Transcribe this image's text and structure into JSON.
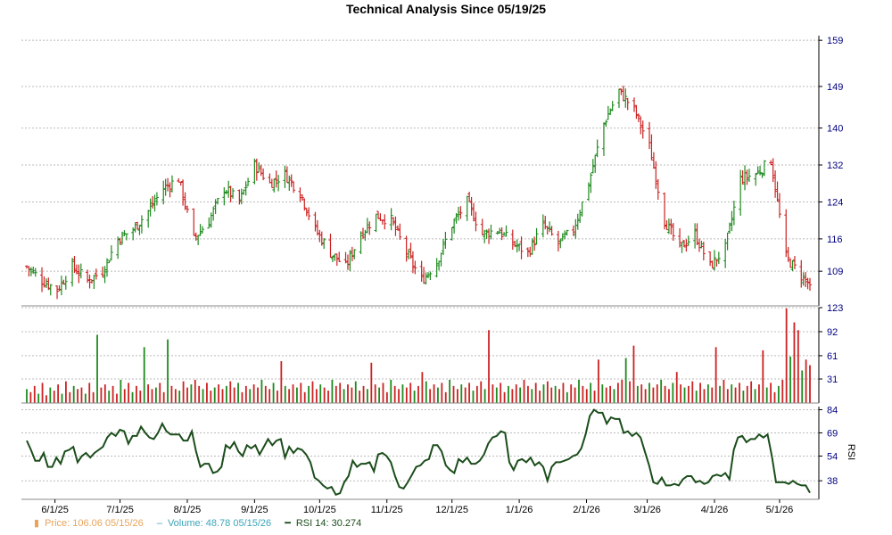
{
  "chart_data": {
    "title": "Technical Analysis Since 05/19/25",
    "x_tick_labels": [
      "6/1/25",
      "7/1/25",
      "8/1/25",
      "9/1/25",
      "10/1/25",
      "11/1/25",
      "12/1/25",
      "1/1/26",
      "2/1/26",
      "3/1/26",
      "4/1/26",
      "5/1/26"
    ],
    "panels": [
      {
        "name": "price",
        "type": "ohlc",
        "y_ticks": [
          109,
          116,
          124,
          132,
          140,
          149,
          159
        ],
        "ylim": [
          101.5,
          160
        ],
        "anchors": [
          {
            "date": "2025-05-19",
            "close": 110
          },
          {
            "date": "2025-05-26",
            "close": 107
          },
          {
            "date": "2025-06-02",
            "close": 105
          },
          {
            "date": "2025-06-09",
            "close": 110
          },
          {
            "date": "2025-06-16",
            "close": 107
          },
          {
            "date": "2025-06-23",
            "close": 109
          },
          {
            "date": "2025-06-30",
            "close": 116
          },
          {
            "date": "2025-07-07",
            "close": 118
          },
          {
            "date": "2025-07-14",
            "close": 122
          },
          {
            "date": "2025-07-21",
            "close": 127
          },
          {
            "date": "2025-07-28",
            "close": 129
          },
          {
            "date": "2025-08-04",
            "close": 116
          },
          {
            "date": "2025-08-11",
            "close": 120
          },
          {
            "date": "2025-08-18",
            "close": 127
          },
          {
            "date": "2025-08-25",
            "close": 124
          },
          {
            "date": "2025-09-01",
            "close": 132
          },
          {
            "date": "2025-09-08",
            "close": 128
          },
          {
            "date": "2025-09-15",
            "close": 130
          },
          {
            "date": "2025-09-22",
            "close": 126
          },
          {
            "date": "2025-09-29",
            "close": 118
          },
          {
            "date": "2025-10-06",
            "close": 113
          },
          {
            "date": "2025-10-13",
            "close": 110
          },
          {
            "date": "2025-10-20",
            "close": 117
          },
          {
            "date": "2025-10-27",
            "close": 121
          },
          {
            "date": "2025-11-03",
            "close": 120
          },
          {
            "date": "2025-11-10",
            "close": 113
          },
          {
            "date": "2025-11-17",
            "close": 107
          },
          {
            "date": "2025-11-24",
            "close": 111
          },
          {
            "date": "2025-12-01",
            "close": 119
          },
          {
            "date": "2025-12-08",
            "close": 124
          },
          {
            "date": "2025-12-15",
            "close": 117
          },
          {
            "date": "2025-12-22",
            "close": 118
          },
          {
            "date": "2025-12-29",
            "close": 115
          },
          {
            "date": "2026-01-05",
            "close": 113
          },
          {
            "date": "2026-01-12",
            "close": 119
          },
          {
            "date": "2026-01-19",
            "close": 115
          },
          {
            "date": "2026-01-26",
            "close": 118
          },
          {
            "date": "2026-02-02",
            "close": 128
          },
          {
            "date": "2026-02-09",
            "close": 141
          },
          {
            "date": "2026-02-16",
            "close": 148
          },
          {
            "date": "2026-02-23",
            "close": 144
          },
          {
            "date": "2026-03-02",
            "close": 136
          },
          {
            "date": "2026-03-09",
            "close": 120
          },
          {
            "date": "2026-03-16",
            "close": 114
          },
          {
            "date": "2026-03-23",
            "close": 117
          },
          {
            "date": "2026-03-30",
            "close": 110
          },
          {
            "date": "2026-04-06",
            "close": 114
          },
          {
            "date": "2026-04-13",
            "close": 129
          },
          {
            "date": "2026-04-20",
            "close": 130
          },
          {
            "date": "2026-04-27",
            "close": 133
          },
          {
            "date": "2026-05-04",
            "close": 112
          },
          {
            "date": "2026-05-11",
            "close": 108
          },
          {
            "date": "2026-05-15",
            "close": 106.06
          }
        ]
      },
      {
        "name": "volume",
        "type": "bar",
        "y_ticks": [
          31,
          61,
          92,
          123
        ],
        "ylim": [
          0,
          123
        ],
        "values": [
          18,
          14,
          22,
          12,
          26,
          10,
          20,
          16,
          24,
          12,
          28,
          14,
          22,
          18,
          20,
          12,
          26,
          14,
          88,
          20,
          24,
          16,
          22,
          12,
          30,
          18,
          26,
          14,
          22,
          16,
          72,
          24,
          18,
          20,
          26,
          14,
          82,
          22,
          18,
          16,
          28,
          20,
          24,
          30,
          22,
          18,
          26,
          16,
          20,
          24,
          18,
          22,
          28,
          20,
          26,
          14,
          22,
          18,
          24,
          20,
          30,
          22,
          18,
          26,
          16,
          54,
          22,
          18,
          24,
          20,
          26,
          14,
          22,
          28,
          18,
          24,
          20,
          16,
          30,
          22,
          26,
          18,
          24,
          20,
          28,
          16,
          22,
          18,
          52,
          24,
          20,
          26,
          14,
          30,
          22,
          18,
          24,
          20,
          26,
          16,
          22,
          40,
          28,
          18,
          24,
          20,
          26,
          14,
          30,
          22,
          18,
          24,
          20,
          26,
          16,
          22,
          28,
          18,
          94,
          24,
          20,
          26,
          14,
          22,
          18,
          24,
          20,
          30,
          22,
          18,
          26,
          16,
          24,
          28,
          20,
          22,
          18,
          26,
          14,
          24,
          20,
          30,
          22,
          18,
          26,
          16,
          56,
          24,
          20,
          22,
          18,
          26,
          30,
          58,
          28,
          74,
          22,
          24,
          18,
          26,
          20,
          24,
          30,
          22,
          18,
          26,
          40,
          24,
          20,
          22,
          28,
          16,
          26,
          18,
          24,
          20,
          72,
          22,
          30,
          18,
          24,
          20,
          26,
          16,
          22,
          28,
          18,
          24,
          68,
          20,
          26,
          14,
          22,
          30,
          122,
          60,
          104,
          94,
          42,
          56,
          48.78
        ],
        "last": 48.78
      },
      {
        "name": "rsi",
        "type": "line",
        "label": "RSI",
        "y_ticks": [
          38,
          54,
          69,
          84
        ],
        "ylim": [
          26,
          86
        ],
        "values": [
          64,
          58,
          51,
          51,
          56,
          47,
          47,
          53,
          49,
          57,
          58,
          60,
          50,
          54,
          56,
          53,
          56,
          58,
          60,
          66,
          69,
          67,
          71,
          70,
          62,
          67,
          67,
          73,
          69,
          66,
          65,
          69,
          75,
          70,
          68,
          68,
          68,
          64,
          64,
          70,
          57,
          47,
          49,
          49,
          43,
          44,
          47,
          61,
          59,
          63,
          57,
          54,
          61,
          59,
          61,
          55,
          60,
          65,
          61,
          64,
          65,
          53,
          60,
          56,
          59,
          58,
          55,
          50,
          40,
          38,
          35,
          33,
          34,
          29,
          30,
          37,
          41,
          51,
          47,
          49,
          49,
          50,
          44,
          55,
          56,
          54,
          50,
          41,
          34,
          33,
          37,
          42,
          47,
          48,
          51,
          52,
          61,
          61,
          57,
          48,
          45,
          43,
          52,
          50,
          53,
          49,
          49,
          51,
          55,
          62,
          66,
          67,
          70,
          69,
          50,
          45,
          51,
          52,
          50,
          53,
          48,
          50,
          47,
          38,
          47,
          50,
          50,
          51,
          52,
          54,
          55,
          59,
          68,
          80,
          84,
          82,
          82,
          75,
          79,
          78,
          78,
          69,
          70,
          67,
          69,
          66,
          57,
          48,
          37,
          36,
          40,
          35,
          35,
          36,
          35,
          39,
          41,
          41,
          37,
          38,
          36,
          37,
          41,
          42,
          41,
          43,
          39,
          58,
          66,
          67,
          63,
          65,
          65,
          68,
          66,
          68,
          54,
          37,
          37,
          37,
          36,
          38,
          36,
          35,
          35,
          30.274
        ],
        "last": 30.274
      }
    ],
    "legend": {
      "price": "Price: 106.06  05/15/26",
      "volume": "Volume: 48.78  05/15/26",
      "rsi": "RSI 14: 30.274"
    }
  },
  "colors": {
    "up": "#1e8a1e",
    "down": "#cc2222",
    "grid": "#bbbbbb",
    "axis": "#000000",
    "tick_text": "#000080",
    "rsi_line": "#1b4d1b",
    "price_legend": "#e8a45c",
    "volume_legend": "#3aa6b9"
  }
}
